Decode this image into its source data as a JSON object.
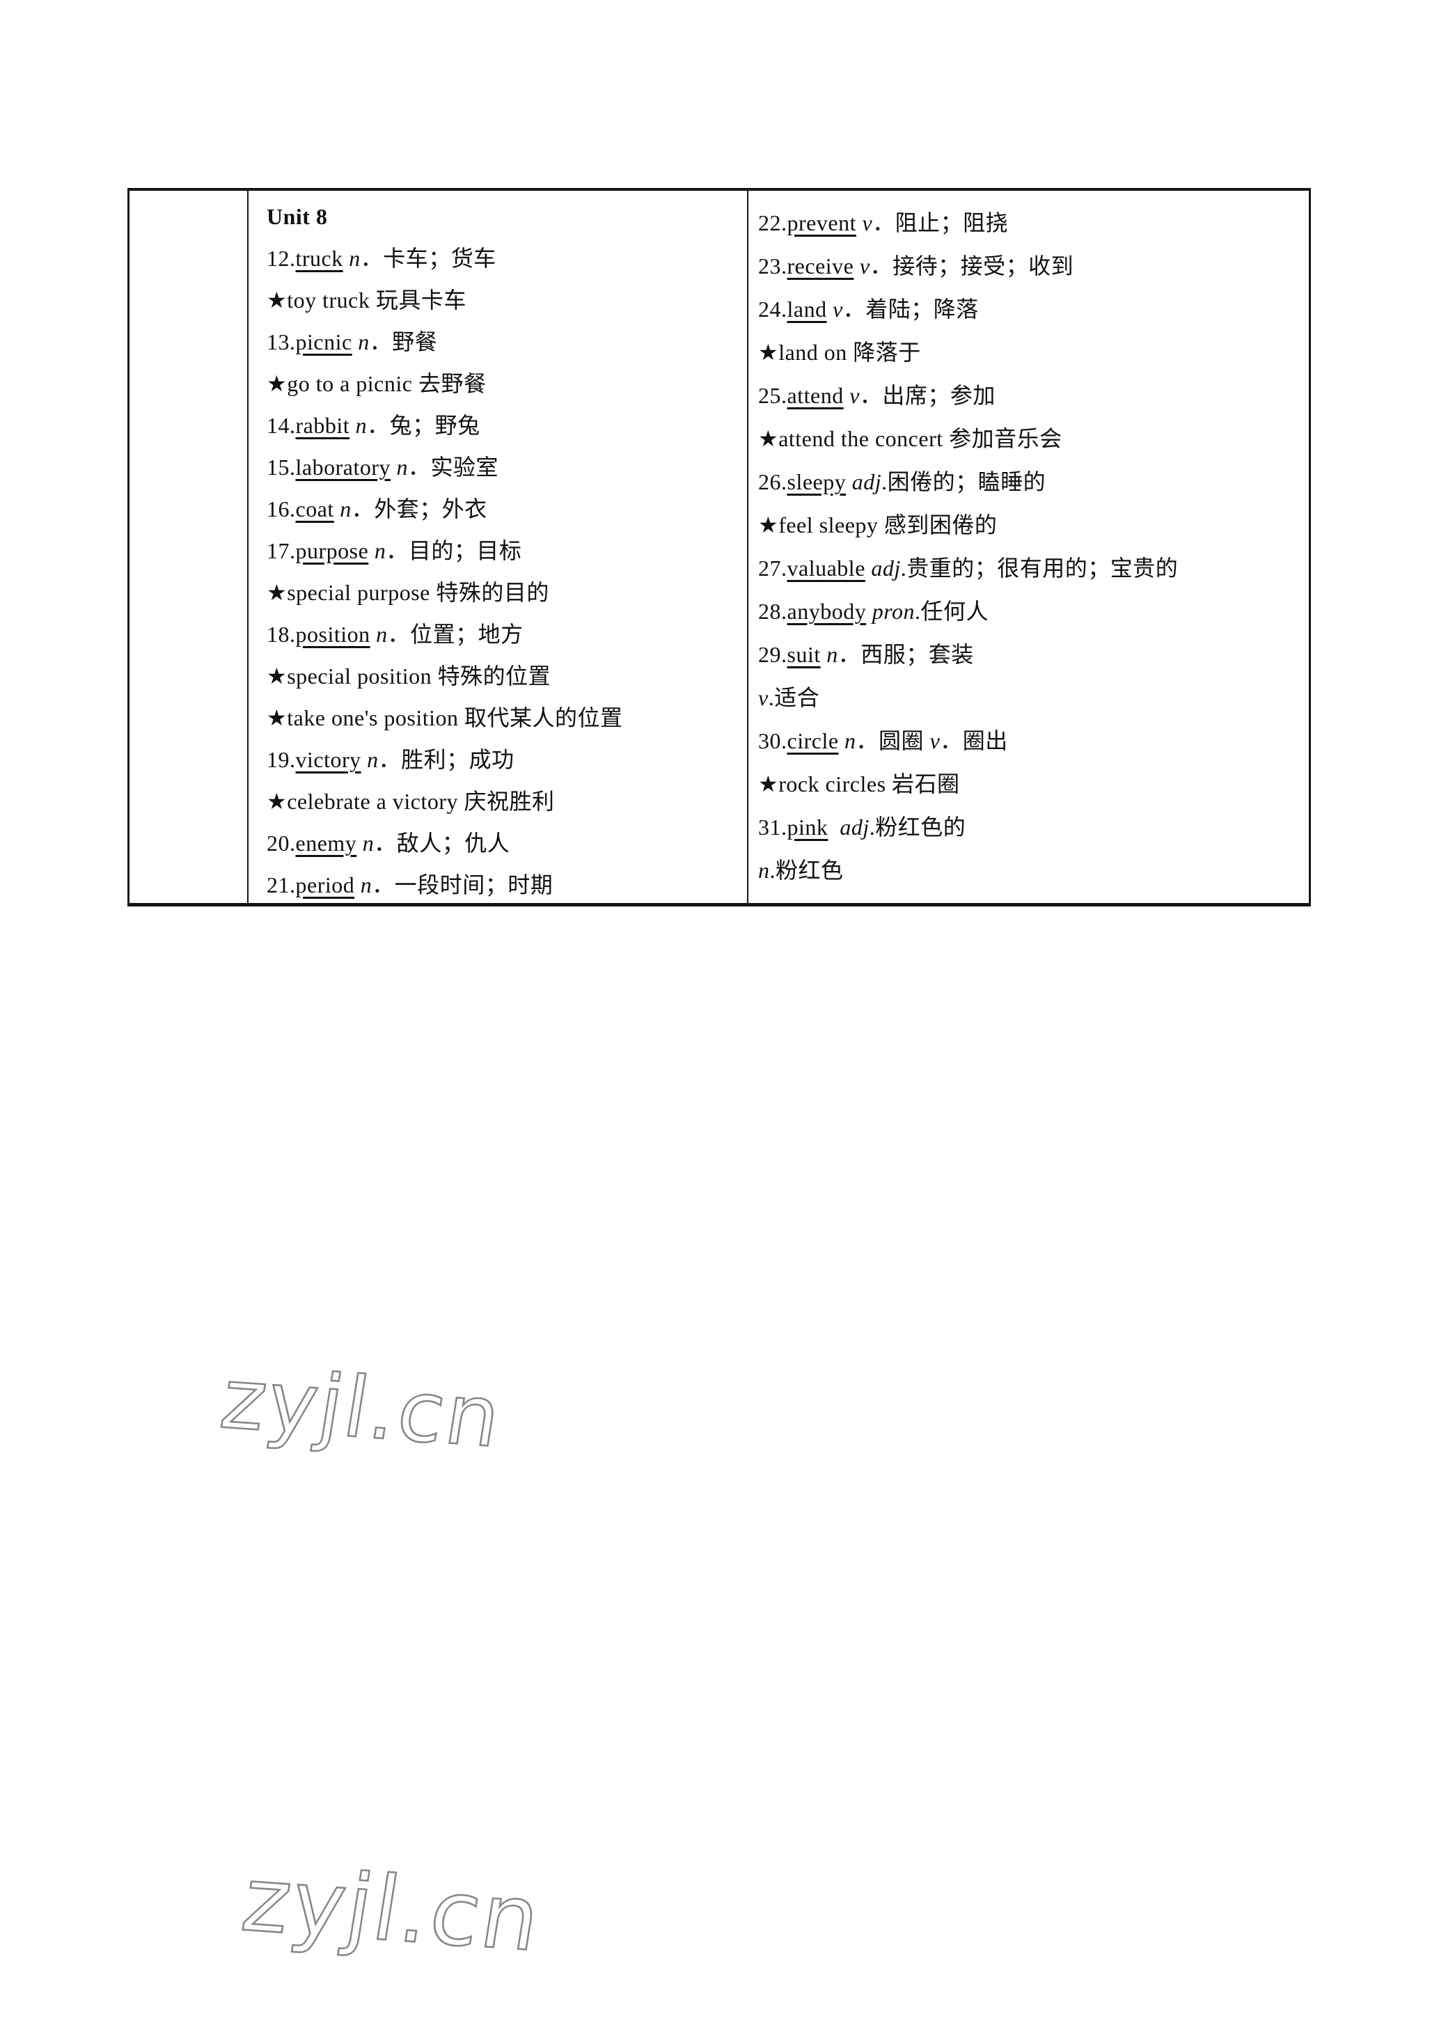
{
  "document": {
    "unit_title": "Unit 8",
    "watermark": {
      "text": "zyjl.cn",
      "color": "#8b8683"
    },
    "vocab_table": {
      "left_rows": [
        [
          {
            "t": "Unit 8",
            "b": true
          }
        ],
        [
          {
            "t": "12."
          },
          {
            "t": "truck",
            "u": true
          },
          {
            "t": " "
          },
          {
            "t": "n",
            "i": true
          },
          {
            "t": "．卡车；货车"
          }
        ],
        [
          {
            "t": "★",
            "icon": true
          },
          {
            "t": "toy truck 玩具卡车"
          }
        ],
        [
          {
            "t": "13."
          },
          {
            "t": "picnic",
            "u": true
          },
          {
            "t": " "
          },
          {
            "t": "n",
            "i": true
          },
          {
            "t": "．野餐"
          }
        ],
        [
          {
            "t": "★",
            "icon": true
          },
          {
            "t": "go to a picnic 去野餐"
          }
        ],
        [
          {
            "t": "14."
          },
          {
            "t": "rabbit",
            "u": true
          },
          {
            "t": " "
          },
          {
            "t": "n",
            "i": true
          },
          {
            "t": "．兔；野兔"
          }
        ],
        [
          {
            "t": "15."
          },
          {
            "t": "laboratory",
            "u": true
          },
          {
            "t": " "
          },
          {
            "t": "n",
            "i": true
          },
          {
            "t": "．实验室"
          }
        ],
        [
          {
            "t": "16."
          },
          {
            "t": "coat",
            "u": true
          },
          {
            "t": " "
          },
          {
            "t": "n",
            "i": true
          },
          {
            "t": "．外套；外衣"
          }
        ],
        [
          {
            "t": "17."
          },
          {
            "t": "purpose",
            "u": true
          },
          {
            "t": " "
          },
          {
            "t": "n",
            "i": true
          },
          {
            "t": "．目的；目标"
          }
        ],
        [
          {
            "t": "★",
            "icon": true
          },
          {
            "t": "special purpose 特殊的目的"
          }
        ],
        [
          {
            "t": "18."
          },
          {
            "t": "position",
            "u": true
          },
          {
            "t": " "
          },
          {
            "t": "n",
            "i": true
          },
          {
            "t": "．位置；地方"
          }
        ],
        [
          {
            "t": "★",
            "icon": true
          },
          {
            "t": "special position 特殊的位置"
          }
        ],
        [
          {
            "t": "★",
            "icon": true
          },
          {
            "t": "take one's position 取代某人的位置"
          }
        ],
        [
          {
            "t": "19."
          },
          {
            "t": "victory",
            "u": true
          },
          {
            "t": " "
          },
          {
            "t": "n",
            "i": true
          },
          {
            "t": "．胜利；成功"
          }
        ],
        [
          {
            "t": "★",
            "icon": true
          },
          {
            "t": "celebrate a victory 庆祝胜利"
          }
        ],
        [
          {
            "t": "20."
          },
          {
            "t": "enemy",
            "u": true
          },
          {
            "t": " "
          },
          {
            "t": "n",
            "i": true
          },
          {
            "t": "．敌人；仇人"
          }
        ],
        [
          {
            "t": "21."
          },
          {
            "t": "period",
            "u": true
          },
          {
            "t": " "
          },
          {
            "t": "n",
            "i": true
          },
          {
            "t": "．一段时间；时期"
          }
        ]
      ],
      "right_rows": [
        [
          {
            "t": "22."
          },
          {
            "t": "prevent",
            "u": true
          },
          {
            "t": " "
          },
          {
            "t": "v",
            "i": true
          },
          {
            "t": "．阻止；阻挠"
          }
        ],
        [
          {
            "t": "23."
          },
          {
            "t": "receive",
            "u": true
          },
          {
            "t": " "
          },
          {
            "t": "v",
            "i": true
          },
          {
            "t": "．接待；接受；收到"
          }
        ],
        [
          {
            "t": "24."
          },
          {
            "t": "land",
            "u": true
          },
          {
            "t": " "
          },
          {
            "t": "v",
            "i": true
          },
          {
            "t": "．着陆；降落"
          }
        ],
        [
          {
            "t": "★",
            "icon": true
          },
          {
            "t": "land on 降落于"
          }
        ],
        [
          {
            "t": "25."
          },
          {
            "t": "attend",
            "u": true
          },
          {
            "t": " "
          },
          {
            "t": "v",
            "i": true
          },
          {
            "t": "．出席；参加"
          }
        ],
        [
          {
            "t": "★",
            "icon": true
          },
          {
            "t": "attend the concert 参加音乐会"
          }
        ],
        [
          {
            "t": "26."
          },
          {
            "t": "sleepy",
            "u": true
          },
          {
            "t": " "
          },
          {
            "t": "adj",
            "i": true
          },
          {
            "t": ".困倦的；瞌睡的"
          }
        ],
        [
          {
            "t": "★",
            "icon": true
          },
          {
            "t": "feel sleepy 感到困倦的"
          }
        ],
        [
          {
            "t": "27."
          },
          {
            "t": "valuable",
            "u": true
          },
          {
            "t": " "
          },
          {
            "t": "adj",
            "i": true
          },
          {
            "t": ".贵重的；很有用的；宝贵的"
          }
        ],
        [
          {
            "t": "28."
          },
          {
            "t": "anybody",
            "u": true
          },
          {
            "t": " "
          },
          {
            "t": "pron",
            "i": true
          },
          {
            "t": ".任何人"
          }
        ],
        [
          {
            "t": "29."
          },
          {
            "t": "suit",
            "u": true
          },
          {
            "t": " "
          },
          {
            "t": "n",
            "i": true
          },
          {
            "t": "．西服；套装"
          }
        ],
        [
          {
            "t": "v",
            "i": true
          },
          {
            "t": ".适合"
          }
        ],
        [
          {
            "t": "30."
          },
          {
            "t": "circle",
            "u": true
          },
          {
            "t": " "
          },
          {
            "t": "n",
            "i": true
          },
          {
            "t": "．圆圈 "
          },
          {
            "t": "v",
            "i": true
          },
          {
            "t": "．圈出"
          }
        ],
        [
          {
            "t": "★",
            "icon": true
          },
          {
            "t": "rock circles 岩石圈"
          }
        ],
        [
          {
            "t": "31."
          },
          {
            "t": "pink",
            "u": true
          },
          {
            "t": "  "
          },
          {
            "t": "adj",
            "i": true
          },
          {
            "t": ".粉红色的"
          }
        ],
        [
          {
            "t": "n",
            "i": true
          },
          {
            "t": ".粉红色"
          }
        ]
      ]
    }
  }
}
